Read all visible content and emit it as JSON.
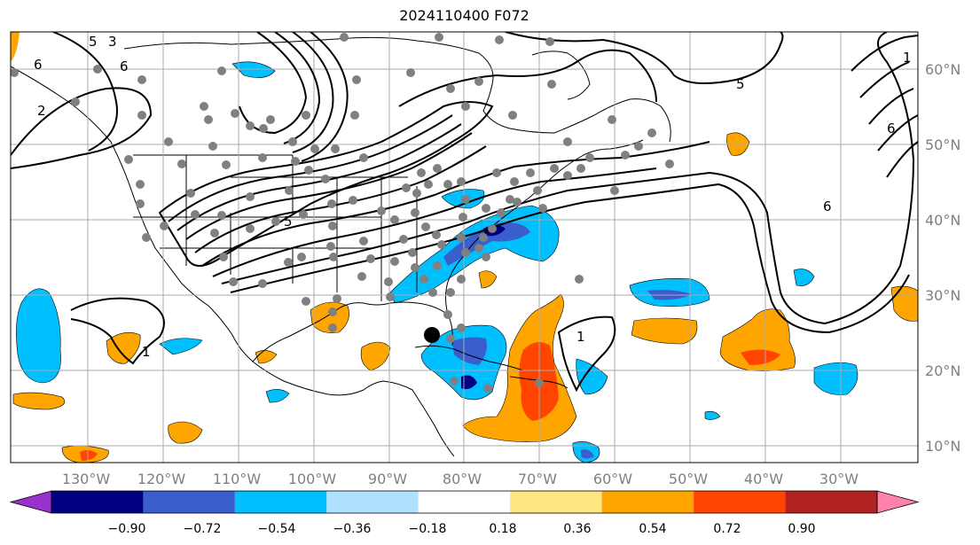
{
  "title": "2024110400 F072",
  "map": {
    "lon_range": [
      -136,
      -15
    ],
    "lat_range": [
      8,
      65
    ],
    "lon_labels": [
      "130°W",
      "120°W",
      "110°W",
      "100°W",
      "90°W",
      "80°W",
      "70°W",
      "60°W",
      "50°W",
      "40°W",
      "30°W"
    ],
    "lat_labels": [
      "60°N",
      "50°N",
      "40°N",
      "30°N",
      "20°N",
      "10°N"
    ],
    "contour_labels": [
      "5",
      "3",
      "6",
      "2",
      "5",
      "6",
      "6",
      "1",
      "5",
      "6",
      "1",
      "1"
    ],
    "center_marker": {
      "lon": -84.5,
      "lat": 24.8
    }
  },
  "colorbar": {
    "tick_labels": [
      "−0.90",
      "−0.72",
      "−0.54",
      "−0.36",
      "−0.18",
      "0.18",
      "0.36",
      "0.54",
      "0.72",
      "0.90"
    ],
    "colors": [
      "#9932cc",
      "#000080",
      "#3a5fcd",
      "#00bfff",
      "#b0e2ff",
      "#ffffff",
      "#ffe680",
      "#ffa500",
      "#ff4500",
      "#b22222",
      "#ff82ab"
    ]
  }
}
